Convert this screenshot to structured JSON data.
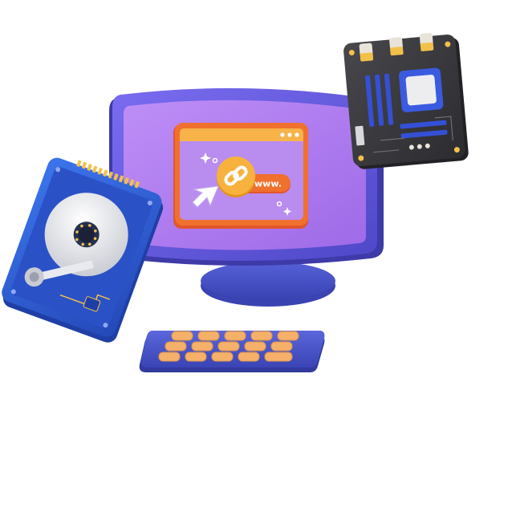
{
  "screen": {
    "url_pill_text": "www."
  },
  "colors": {
    "monitor_bezel": "#6B5CE6",
    "monitor_screen": "#B07CF0",
    "monitor_stand": "#4A53C8",
    "browser_frame": "#F0702E",
    "browser_titlebar": "#F7B34A",
    "browser_content": "#B98CF0",
    "link_circle": "#F6B23C",
    "keyboard_base": "#4A55C7",
    "keyboard_keys": "#F5B06A",
    "motherboard_board": "#3A3A3E",
    "motherboard_slots": "#3450D6",
    "hdd_case": "#2F5FD8",
    "hdd_platter": "#E8E8EC"
  },
  "icons": {
    "monitor": "desktop-monitor-icon",
    "browser_window": "browser-window-icon",
    "link": "chain-link-icon",
    "cursor": "mouse-cursor-icon",
    "keyboard": "keyboard-icon",
    "hard_drive": "hard-disk-drive-icon",
    "motherboard": "motherboard-icon"
  }
}
